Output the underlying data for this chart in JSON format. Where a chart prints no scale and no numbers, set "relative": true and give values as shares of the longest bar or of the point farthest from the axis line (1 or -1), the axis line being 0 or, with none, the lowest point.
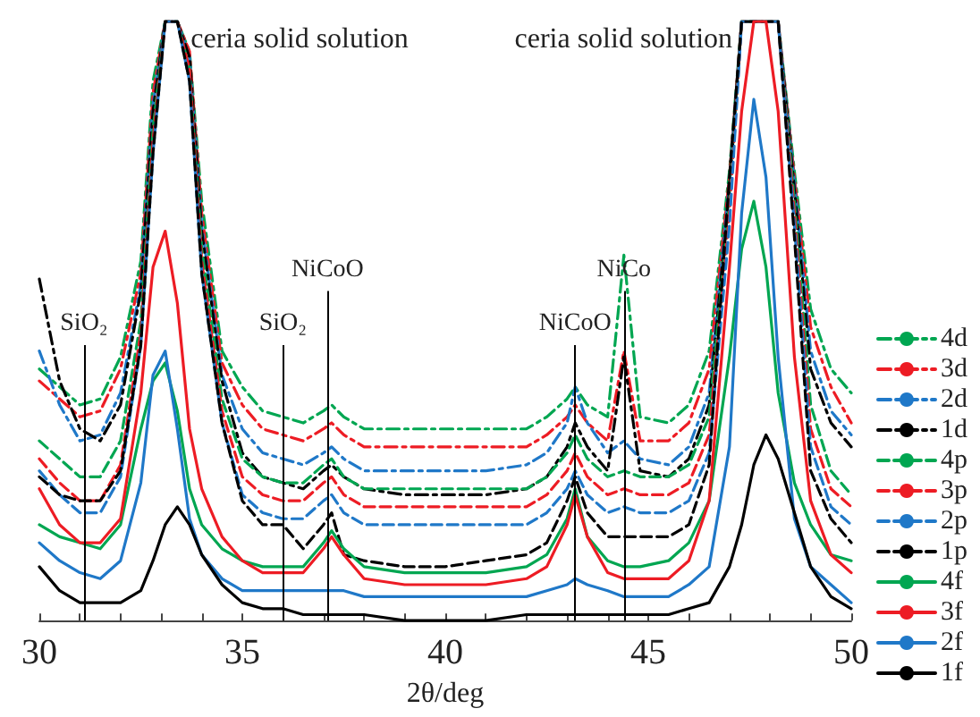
{
  "chart_data": {
    "type": "line",
    "relative": true,
    "xlabel": "2θ/deg",
    "xlim": [
      30,
      50
    ],
    "xticks": [
      30,
      {
        "value": 31,
        "label": null
      },
      {
        "value": 32,
        "label": null
      },
      {
        "value": 33,
        "label": null
      },
      {
        "value": 34,
        "label": null
      },
      35,
      {
        "value": 36,
        "label": null
      },
      {
        "value": 37,
        "label": null
      },
      {
        "value": 38,
        "label": null
      },
      {
        "value": 39,
        "label": null
      },
      40,
      {
        "value": 41,
        "label": null
      },
      {
        "value": 42,
        "label": null
      },
      {
        "value": 43,
        "label": null
      },
      {
        "value": 44,
        "label": null
      },
      45,
      {
        "value": 46,
        "label": null
      },
      {
        "value": 47,
        "label": null
      },
      {
        "value": 48,
        "label": null
      },
      {
        "value": 49,
        "label": null
      },
      50
    ],
    "x": [
      30,
      30.5,
      31,
      31.5,
      32,
      32.5,
      32.8,
      33.1,
      33.4,
      33.7,
      34,
      34.5,
      35,
      35.5,
      36,
      36.5,
      37,
      37.2,
      37.5,
      38,
      39,
      40,
      41,
      42,
      42.5,
      43,
      43.2,
      43.5,
      44,
      44.4,
      44.8,
      45.5,
      46,
      46.5,
      47,
      47.3,
      47.6,
      47.9,
      48.2,
      48.6,
      49,
      49.5,
      50
    ],
    "grid": false,
    "legend": "right",
    "marker": "none",
    "series": [
      {
        "name": "4d",
        "color": "#00a651",
        "line_style": "dashdot",
        "values": [
          0.42,
          0.39,
          0.36,
          0.37,
          0.44,
          0.6,
          0.9,
          1,
          1,
          0.95,
          0.7,
          0.45,
          0.39,
          0.35,
          0.34,
          0.33,
          0.35,
          0.36,
          0.34,
          0.32,
          0.32,
          0.32,
          0.32,
          0.32,
          0.34,
          0.37,
          0.39,
          0.36,
          0.34,
          0.61,
          0.34,
          0.33,
          0.36,
          0.45,
          0.75,
          1,
          1,
          1,
          1,
          0.75,
          0.52,
          0.42,
          0.38
        ]
      },
      {
        "name": "3d",
        "color": "#ed1c24",
        "line_style": "dashdot",
        "values": [
          0.4,
          0.37,
          0.34,
          0.35,
          0.42,
          0.58,
          0.88,
          1,
          1,
          0.95,
          0.68,
          0.43,
          0.36,
          0.32,
          0.31,
          0.3,
          0.32,
          0.33,
          0.31,
          0.29,
          0.29,
          0.29,
          0.29,
          0.29,
          0.31,
          0.34,
          0.36,
          0.33,
          0.3,
          0.45,
          0.3,
          0.3,
          0.33,
          0.42,
          0.74,
          1,
          1,
          1,
          1,
          0.74,
          0.49,
          0.39,
          0.33
        ]
      },
      {
        "name": "2d",
        "color": "#1f78c8",
        "line_style": "dashdot",
        "values": [
          0.45,
          0.36,
          0.3,
          0.31,
          0.38,
          0.56,
          0.86,
          1,
          1,
          0.94,
          0.66,
          0.41,
          0.32,
          0.28,
          0.27,
          0.26,
          0.28,
          0.29,
          0.27,
          0.25,
          0.25,
          0.25,
          0.25,
          0.26,
          0.28,
          0.33,
          0.39,
          0.33,
          0.28,
          0.3,
          0.27,
          0.26,
          0.29,
          0.38,
          0.73,
          1,
          1,
          1,
          1,
          0.73,
          0.45,
          0.35,
          0.31
        ]
      },
      {
        "name": "1d",
        "color": "#000000",
        "line_style": "dashdot",
        "values": [
          0.57,
          0.4,
          0.32,
          0.3,
          0.36,
          0.55,
          0.85,
          1,
          1,
          0.94,
          0.65,
          0.4,
          0.28,
          0.24,
          0.23,
          0.22,
          0.25,
          0.26,
          0.24,
          0.22,
          0.21,
          0.21,
          0.21,
          0.22,
          0.24,
          0.29,
          0.33,
          0.29,
          0.25,
          0.44,
          0.25,
          0.24,
          0.27,
          0.36,
          0.72,
          1,
          1,
          1,
          1,
          0.72,
          0.42,
          0.33,
          0.29
        ]
      },
      {
        "name": "4p",
        "color": "#00a651",
        "line_style": "dashed",
        "values": [
          0.3,
          0.27,
          0.24,
          0.24,
          0.3,
          0.5,
          0.82,
          1,
          1,
          0.92,
          0.62,
          0.37,
          0.27,
          0.24,
          0.23,
          0.23,
          0.26,
          0.27,
          0.24,
          0.22,
          0.22,
          0.22,
          0.22,
          0.22,
          0.24,
          0.28,
          0.31,
          0.27,
          0.24,
          0.25,
          0.24,
          0.24,
          0.26,
          0.34,
          0.7,
          1,
          1,
          1,
          1,
          0.7,
          0.36,
          0.25,
          0.21
        ]
      },
      {
        "name": "3p",
        "color": "#ed1c24",
        "line_style": "dashed",
        "values": [
          0.27,
          0.23,
          0.2,
          0.2,
          0.26,
          0.48,
          0.8,
          1,
          1,
          0.92,
          0.6,
          0.35,
          0.24,
          0.21,
          0.2,
          0.2,
          0.23,
          0.24,
          0.21,
          0.19,
          0.19,
          0.19,
          0.19,
          0.19,
          0.21,
          0.25,
          0.28,
          0.24,
          0.21,
          0.22,
          0.21,
          0.21,
          0.23,
          0.31,
          0.68,
          1,
          1,
          1,
          1,
          0.68,
          0.32,
          0.22,
          0.19
        ]
      },
      {
        "name": "2p",
        "color": "#1f78c8",
        "line_style": "dashed",
        "values": [
          0.25,
          0.21,
          0.18,
          0.18,
          0.24,
          0.46,
          0.78,
          1,
          1,
          0.9,
          0.58,
          0.33,
          0.21,
          0.18,
          0.17,
          0.17,
          0.2,
          0.21,
          0.18,
          0.16,
          0.16,
          0.16,
          0.16,
          0.16,
          0.18,
          0.22,
          0.25,
          0.21,
          0.18,
          0.19,
          0.18,
          0.18,
          0.2,
          0.28,
          0.66,
          1,
          1,
          1,
          1,
          0.66,
          0.29,
          0.19,
          0.16
        ]
      },
      {
        "name": "1p",
        "color": "#000000",
        "line_style": "dashed",
        "values": [
          0.24,
          0.21,
          0.2,
          0.2,
          0.25,
          0.46,
          0.78,
          1,
          1,
          0.9,
          0.58,
          0.33,
          0.2,
          0.16,
          0.16,
          0.12,
          0.16,
          0.18,
          0.11,
          0.1,
          0.09,
          0.09,
          0.1,
          0.11,
          0.13,
          0.2,
          0.24,
          0.18,
          0.14,
          0.14,
          0.14,
          0.14,
          0.16,
          0.26,
          0.74,
          1,
          1,
          1,
          1,
          0.64,
          0.25,
          0.17,
          0.13
        ]
      },
      {
        "name": "4f",
        "color": "#00a651",
        "line_style": "solid",
        "values": [
          0.16,
          0.14,
          0.13,
          0.12,
          0.16,
          0.32,
          0.4,
          0.43,
          0.35,
          0.22,
          0.16,
          0.12,
          0.1,
          0.09,
          0.09,
          0.09,
          0.13,
          0.15,
          0.12,
          0.09,
          0.08,
          0.08,
          0.08,
          0.09,
          0.11,
          0.17,
          0.22,
          0.14,
          0.1,
          0.09,
          0.09,
          0.1,
          0.13,
          0.2,
          0.44,
          0.62,
          0.7,
          0.59,
          0.38,
          0.23,
          0.16,
          0.11,
          0.1
        ]
      },
      {
        "name": "3f",
        "color": "#ed1c24",
        "line_style": "solid",
        "values": [
          0.22,
          0.16,
          0.13,
          0.13,
          0.17,
          0.38,
          0.59,
          0.65,
          0.53,
          0.32,
          0.22,
          0.14,
          0.1,
          0.08,
          0.08,
          0.08,
          0.12,
          0.14,
          0.11,
          0.07,
          0.06,
          0.06,
          0.06,
          0.07,
          0.09,
          0.16,
          0.21,
          0.14,
          0.08,
          0.07,
          0.07,
          0.07,
          0.1,
          0.2,
          0.59,
          0.85,
          1,
          1,
          0.85,
          0.44,
          0.2,
          0.11,
          0.08
        ]
      },
      {
        "name": "2f",
        "color": "#1f78c8",
        "line_style": "solid",
        "values": [
          0.13,
          0.1,
          0.08,
          0.07,
          0.1,
          0.23,
          0.41,
          0.45,
          0.32,
          0.17,
          0.11,
          0.07,
          0.05,
          0.05,
          0.05,
          0.05,
          0.05,
          0.05,
          0.05,
          0.04,
          0.04,
          0.04,
          0.04,
          0.04,
          0.05,
          0.06,
          0.07,
          0.06,
          0.05,
          0.04,
          0.04,
          0.04,
          0.06,
          0.09,
          0.29,
          0.68,
          0.87,
          0.74,
          0.44,
          0.17,
          0.09,
          0.06,
          0.03
        ]
      },
      {
        "name": "1f",
        "color": "#000000",
        "line_style": "solid",
        "values": [
          0.09,
          0.05,
          0.03,
          0.03,
          0.03,
          0.05,
          0.1,
          0.16,
          0.19,
          0.16,
          0.11,
          0.06,
          0.03,
          0.02,
          0.02,
          0.01,
          0.01,
          0.01,
          0.01,
          0.01,
          0,
          0,
          0,
          0.01,
          0.01,
          0.01,
          0.01,
          0.01,
          0.01,
          0.01,
          0.01,
          0.01,
          0.02,
          0.03,
          0.09,
          0.16,
          0.26,
          0.31,
          0.27,
          0.18,
          0.09,
          0.04,
          0.02
        ]
      }
    ],
    "ref_lines": [
      {
        "axis": "x",
        "value": 31.1,
        "label": "SiO₂"
      },
      {
        "axis": "x",
        "value": 36,
        "label": "SiO₂"
      },
      {
        "axis": "x",
        "value": 37.1,
        "label": "NiCoO"
      },
      {
        "axis": "x",
        "value": 43.2,
        "label": "NiCoO"
      },
      {
        "axis": "x",
        "value": 44.4,
        "label": "NiCo"
      }
    ],
    "annotations": [
      {
        "text": "ceria solid solution",
        "x": 33.2,
        "y": 1
      },
      {
        "text": "ceria solid solution",
        "x": 47.6,
        "y": 1
      }
    ]
  }
}
